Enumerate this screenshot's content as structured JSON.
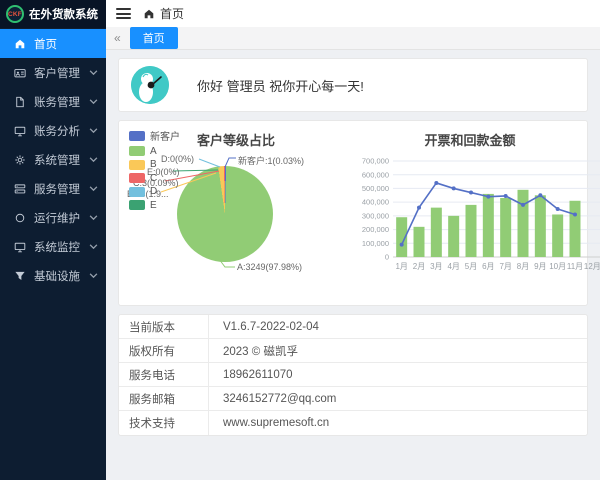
{
  "app": {
    "logo_text": "CKF",
    "title": "在外货款系统"
  },
  "sidebar": {
    "items": [
      {
        "label": "首页",
        "icon": "home",
        "active": true,
        "expandable": false
      },
      {
        "label": "客户管理",
        "icon": "id-card",
        "active": false,
        "expandable": true
      },
      {
        "label": "账务管理",
        "icon": "file",
        "active": false,
        "expandable": true
      },
      {
        "label": "账务分析",
        "icon": "monitor",
        "active": false,
        "expandable": true
      },
      {
        "label": "系统管理",
        "icon": "gear",
        "active": false,
        "expandable": true
      },
      {
        "label": "服务管理",
        "icon": "server",
        "active": false,
        "expandable": true
      },
      {
        "label": "运行维护",
        "icon": "ring",
        "active": false,
        "expandable": true
      },
      {
        "label": "系统监控",
        "icon": "monitor",
        "active": false,
        "expandable": true
      },
      {
        "label": "基础设施",
        "icon": "filter",
        "active": false,
        "expandable": true
      }
    ]
  },
  "header": {
    "breadcrumb": "首页"
  },
  "tabbar": {
    "collapse_icon": "«",
    "active_tab": "首页"
  },
  "greeting": {
    "text": "你好 管理员 祝你开心每一天!"
  },
  "chart_data": [
    {
      "type": "pie",
      "title": "客户等级占比",
      "legend_position": "top-left",
      "legend": [
        "新客户",
        "A",
        "B",
        "C",
        "D",
        "E"
      ],
      "slices": [
        {
          "name": "新客户",
          "value": 1,
          "pct": 0.03,
          "color": "#5470c6"
        },
        {
          "name": "A",
          "value": 3249,
          "pct": 97.98,
          "color": "#91cc75"
        },
        {
          "name": "B",
          "value": 63,
          "pct": 1.9,
          "color": "#fac858"
        },
        {
          "name": "C",
          "value": 3,
          "pct": 0.09,
          "color": "#ee6666"
        },
        {
          "name": "D",
          "value": 0,
          "pct": 0,
          "color": "#73c0de"
        },
        {
          "name": "E",
          "value": 0,
          "pct": 0,
          "color": "#3ba272"
        }
      ],
      "callout_labels": [
        "D:0(0%)",
        "新客户:1(0.03%)",
        "E:0(0%)",
        "C:3(0.09%)",
        "B:63(1.9...",
        "A:3249(97.98%)"
      ]
    },
    {
      "type": "bar",
      "title": "开票和回款金额",
      "categories": [
        "1月",
        "2月",
        "3月",
        "4月",
        "5月",
        "6月",
        "7月",
        "8月",
        "9月",
        "10月",
        "11月",
        "12月"
      ],
      "series": [
        {
          "name": "bar-series",
          "kind": "bar",
          "color": "#91cc75",
          "values": [
            290000,
            220000,
            360000,
            300000,
            380000,
            460000,
            430000,
            490000,
            450000,
            310000,
            410000,
            0
          ]
        },
        {
          "name": "line-series",
          "kind": "line",
          "color": "#5470c6",
          "values": [
            90000,
            360000,
            540000,
            500000,
            470000,
            440000,
            445000,
            380000,
            450000,
            350000,
            310000,
            null
          ]
        }
      ],
      "ylim": [
        0,
        700000
      ],
      "ytick_labels": [
        "0",
        "100,000",
        "200,000",
        "300,000",
        "400,000",
        "500,000",
        "600,000",
        "700,000"
      ],
      "grid": true,
      "legend_position": "none"
    }
  ],
  "info_table": {
    "rows": [
      {
        "label": "当前版本",
        "value": "V1.6.7-2022-02-04"
      },
      {
        "label": "版权所有",
        "value": "2023 © 磁凯孚"
      },
      {
        "label": "服务电话",
        "value": "18962611070"
      },
      {
        "label": "服务邮箱",
        "value": "3246152772@qq.com"
      },
      {
        "label": "技术支持",
        "value": "www.supremesoft.cn"
      }
    ]
  },
  "colors": {
    "accent": "#1890ff",
    "sidebar_bg": "#0d1d31",
    "avatar": "#40c9c6",
    "palette": [
      "#5470c6",
      "#91cc75",
      "#fac858",
      "#ee6666",
      "#73c0de",
      "#3ba272"
    ]
  }
}
